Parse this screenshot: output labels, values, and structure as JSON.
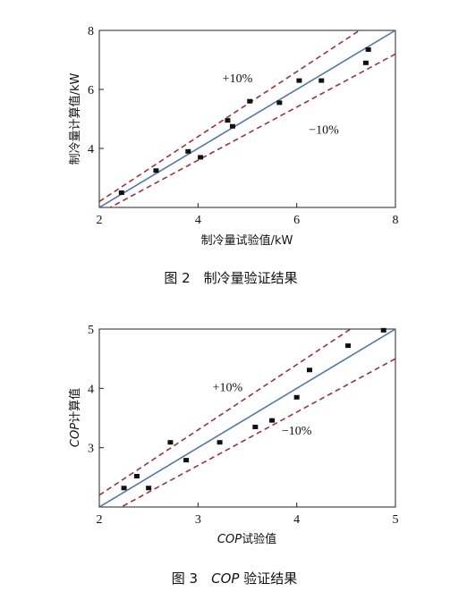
{
  "chart_data": [
    {
      "type": "scatter",
      "caption": "图 2　制冷量验证结果",
      "xlabel": "制冷量试验值/kW",
      "ylabel": "制冷量计算值/kW",
      "xlim": [
        2,
        8
      ],
      "ylim": [
        2,
        8
      ],
      "xticks": [
        2,
        4,
        6,
        8
      ],
      "yticks": [
        4,
        6,
        8
      ],
      "grid": false,
      "series": [
        {
          "x": [
            2.45,
            3.15,
            3.8,
            4.05,
            4.6,
            4.7,
            5.05,
            5.65,
            6.05,
            6.5,
            7.4,
            7.45
          ],
          "y": [
            2.5,
            3.25,
            3.9,
            3.7,
            4.95,
            4.75,
            5.6,
            5.55,
            6.3,
            6.3,
            6.9,
            7.35
          ]
        }
      ],
      "reference_lines": {
        "ideal_slope": 1.0,
        "upper_slope": 1.1,
        "lower_slope": 0.9
      },
      "annotations": [
        {
          "text": "+10%",
          "x": 4.8,
          "y": 6.25
        },
        {
          "text": "−10%",
          "x": 6.55,
          "y": 4.5
        }
      ],
      "colors": {
        "ideal": "#5577aa",
        "band": "#993344",
        "points": "#111111"
      }
    },
    {
      "type": "scatter",
      "caption_italic": "COP",
      "caption_rest": " 验证结果",
      "caption_prefix": "图 3　",
      "xlabel_italic": "COP",
      "xlabel_rest": "试验值",
      "ylabel_italic": "COP",
      "ylabel_rest": "计算值",
      "xlim": [
        2,
        5
      ],
      "ylim": [
        2,
        5
      ],
      "xticks": [
        2,
        3,
        4,
        5
      ],
      "yticks": [
        3,
        4,
        5
      ],
      "grid": false,
      "series": [
        {
          "x": [
            2.25,
            2.38,
            2.5,
            2.72,
            2.88,
            3.22,
            3.58,
            3.75,
            4.0,
            4.13,
            4.52,
            4.88
          ],
          "y": [
            2.32,
            2.52,
            2.32,
            3.09,
            2.79,
            3.09,
            3.35,
            3.46,
            3.85,
            4.31,
            4.72,
            4.98
          ]
        }
      ],
      "reference_lines": {
        "ideal_slope": 1.0,
        "upper_slope": 1.1,
        "lower_slope": 0.9
      },
      "annotations": [
        {
          "text": "+10%",
          "x": 3.3,
          "y": 3.95
        },
        {
          "text": "−10%",
          "x": 4.0,
          "y": 3.22
        }
      ],
      "colors": {
        "ideal": "#5577aa",
        "band": "#993344",
        "points": "#111111"
      }
    }
  ]
}
